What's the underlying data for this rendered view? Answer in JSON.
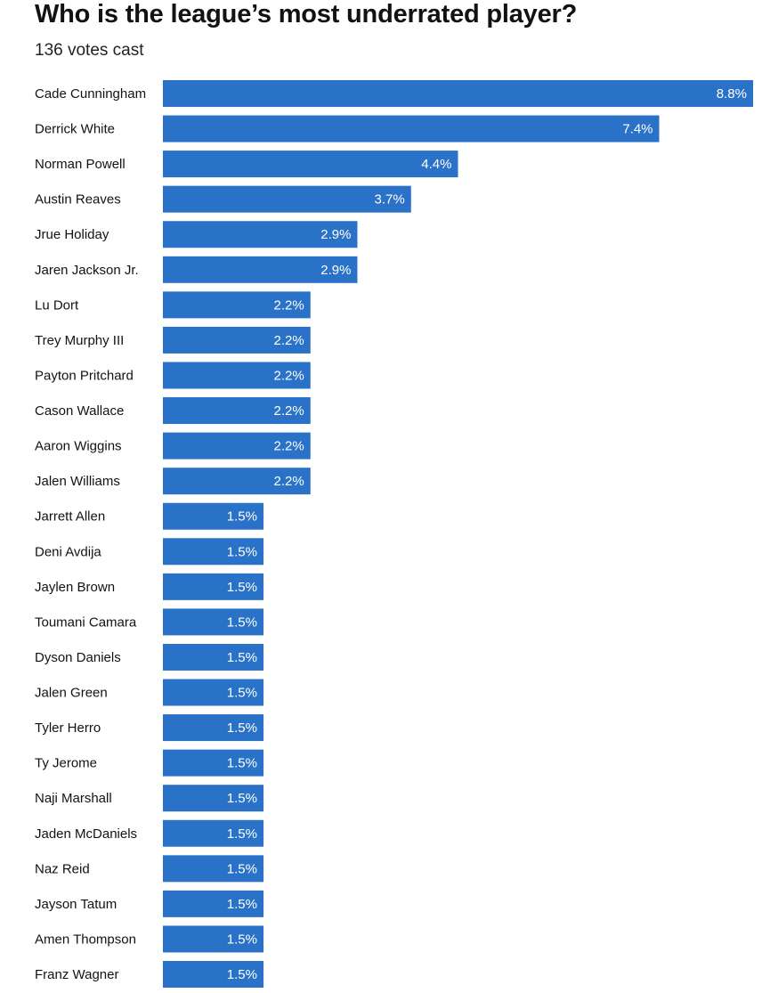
{
  "chart_data": {
    "type": "bar",
    "orientation": "horizontal",
    "title": "Who is the league’s most underrated player?",
    "subtitle": "136 votes cast",
    "value_suffix": "%",
    "bar_color": "#2a72c8",
    "categories": [
      "Cade Cunningham",
      "Derrick White",
      "Norman Powell",
      "Austin Reaves",
      "Jrue Holiday",
      "Jaren Jackson Jr.",
      "Lu Dort",
      "Trey Murphy III",
      "Payton Pritchard",
      "Cason Wallace",
      "Aaron Wiggins",
      "Jalen Williams",
      "Jarrett Allen",
      "Deni Avdija",
      "Jaylen Brown",
      "Toumani Camara",
      "Dyson Daniels",
      "Jalen Green",
      "Tyler Herro",
      "Ty Jerome",
      "Naji Marshall",
      "Jaden McDaniels",
      "Naz Reid",
      "Jayson Tatum",
      "Amen Thompson",
      "Franz Wagner"
    ],
    "values": [
      8.8,
      7.4,
      4.4,
      3.7,
      2.9,
      2.9,
      2.2,
      2.2,
      2.2,
      2.2,
      2.2,
      2.2,
      1.5,
      1.5,
      1.5,
      1.5,
      1.5,
      1.5,
      1.5,
      1.5,
      1.5,
      1.5,
      1.5,
      1.5,
      1.5,
      1.5
    ],
    "xlim": [
      0,
      8.8
    ]
  }
}
